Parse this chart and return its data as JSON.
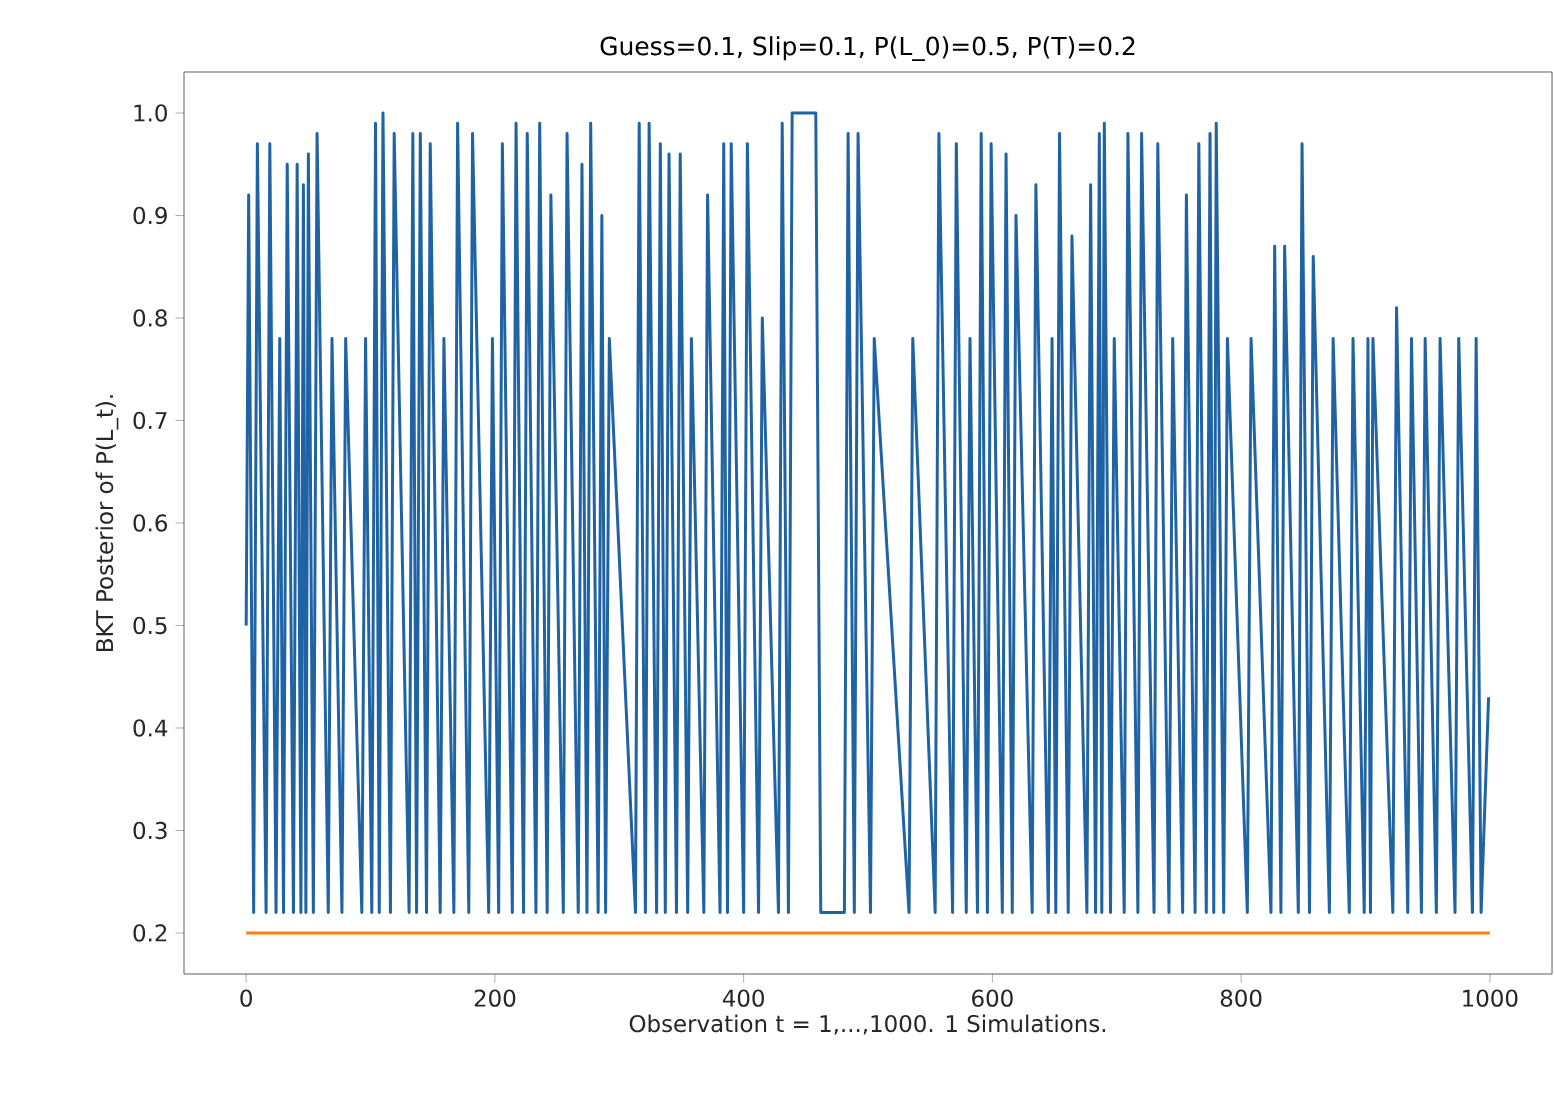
{
  "chart_data": {
    "type": "line",
    "title": "Guess=0.1, Slip=0.1, P(L_0)=0.5, P(T)=0.2",
    "xlabel": "Observation t = 1,...,1000.   1 Simulations.",
    "ylabel": "BKT Posterior of P(L_t).",
    "xlim": [
      -50,
      1050
    ],
    "ylim": [
      0.16,
      1.04
    ],
    "xticks": [
      0,
      200,
      400,
      600,
      800,
      1000
    ],
    "yticks": [
      {
        "value": 0.2,
        "label": "0.2"
      },
      {
        "value": 0.3,
        "label": "0.3"
      },
      {
        "value": 0.4,
        "label": "0.4"
      },
      {
        "value": 0.5,
        "label": "0.5"
      },
      {
        "value": 0.6,
        "label": "0.6"
      },
      {
        "value": 0.7,
        "label": "0.7"
      },
      {
        "value": 0.8,
        "label": "0.8"
      },
      {
        "value": 0.9,
        "label": "0.9"
      },
      {
        "value": 1.0,
        "label": "1.0"
      }
    ],
    "marker": "none",
    "line_style": "solid",
    "series": [
      {
        "color": "#1f63a5",
        "x": [
          0,
          2,
          6,
          9,
          16,
          19,
          24,
          27,
          30,
          33,
          38,
          41,
          44,
          46,
          48,
          50,
          54,
          57,
          66,
          69,
          77,
          80,
          93,
          96,
          101,
          104,
          107,
          110,
          116,
          119,
          131,
          134,
          137,
          140,
          145,
          148,
          156,
          159,
          167,
          170,
          179,
          182,
          195,
          198,
          203,
          206,
          214,
          217,
          223,
          226,
          233,
          236,
          242,
          245,
          255,
          258,
          267,
          270,
          274,
          277,
          283,
          286,
          289,
          292,
          313,
          316,
          321,
          324,
          330,
          333,
          337,
          340,
          346,
          349,
          355,
          358,
          368,
          371,
          381,
          384,
          387,
          390,
          400,
          403,
          412,
          415,
          428,
          431,
          436,
          439,
          458,
          462,
          481,
          484,
          489,
          492,
          502,
          505,
          533,
          536,
          554,
          557,
          568,
          571,
          579,
          582,
          588,
          591,
          596,
          599,
          608,
          611,
          616,
          619,
          632,
          635,
          645,
          648,
          651,
          654,
          661,
          664,
          676,
          679,
          683,
          686,
          688,
          690,
          695,
          698,
          706,
          709,
          717,
          720,
          730,
          733,
          742,
          745,
          753,
          756,
          763,
          766,
          772,
          775,
          778,
          780,
          786,
          789,
          805,
          808,
          824,
          827,
          832,
          835,
          846,
          849,
          855,
          858,
          871,
          874,
          887,
          890,
          899,
          902,
          904,
          906,
          922,
          925,
          934,
          937,
          945,
          948,
          957,
          960,
          972,
          975,
          986,
          989,
          993,
          999
        ],
        "values": [
          0.5,
          0.92,
          0.22,
          0.97,
          0.22,
          0.97,
          0.22,
          0.78,
          0.22,
          0.95,
          0.22,
          0.95,
          0.22,
          0.93,
          0.22,
          0.96,
          0.22,
          0.98,
          0.22,
          0.78,
          0.22,
          0.78,
          0.22,
          0.78,
          0.22,
          0.99,
          0.22,
          1.0,
          0.22,
          0.98,
          0.22,
          0.98,
          0.22,
          0.98,
          0.22,
          0.97,
          0.22,
          0.78,
          0.22,
          0.99,
          0.22,
          0.98,
          0.22,
          0.78,
          0.22,
          0.97,
          0.22,
          0.99,
          0.22,
          0.98,
          0.22,
          0.99,
          0.22,
          0.92,
          0.22,
          0.98,
          0.22,
          0.95,
          0.22,
          0.99,
          0.22,
          0.9,
          0.22,
          0.78,
          0.22,
          0.99,
          0.22,
          0.99,
          0.22,
          0.97,
          0.22,
          0.96,
          0.22,
          0.96,
          0.22,
          0.78,
          0.22,
          0.92,
          0.22,
          0.97,
          0.22,
          0.97,
          0.22,
          0.97,
          0.22,
          0.8,
          0.22,
          0.99,
          0.22,
          1.0,
          1.0,
          0.22,
          0.22,
          0.98,
          0.22,
          0.98,
          0.22,
          0.78,
          0.22,
          0.78,
          0.22,
          0.98,
          0.22,
          0.97,
          0.22,
          0.78,
          0.22,
          0.98,
          0.22,
          0.97,
          0.22,
          0.96,
          0.22,
          0.9,
          0.22,
          0.93,
          0.22,
          0.78,
          0.22,
          0.98,
          0.22,
          0.88,
          0.22,
          0.93,
          0.22,
          0.98,
          0.22,
          0.99,
          0.22,
          0.78,
          0.22,
          0.98,
          0.22,
          0.98,
          0.22,
          0.97,
          0.22,
          0.78,
          0.22,
          0.92,
          0.22,
          0.97,
          0.22,
          0.98,
          0.22,
          0.99,
          0.22,
          0.78,
          0.22,
          0.78,
          0.22,
          0.87,
          0.22,
          0.87,
          0.22,
          0.97,
          0.22,
          0.86,
          0.22,
          0.78,
          0.22,
          0.78,
          0.22,
          0.78,
          0.22,
          0.78,
          0.22,
          0.81,
          0.22,
          0.78,
          0.22,
          0.78,
          0.22,
          0.78,
          0.22,
          0.78,
          0.22,
          0.78,
          0.22,
          0.43
        ]
      },
      {
        "color": "#ff7f0e",
        "x": [
          0,
          1000
        ],
        "values": [
          0.2,
          0.2
        ]
      }
    ]
  }
}
